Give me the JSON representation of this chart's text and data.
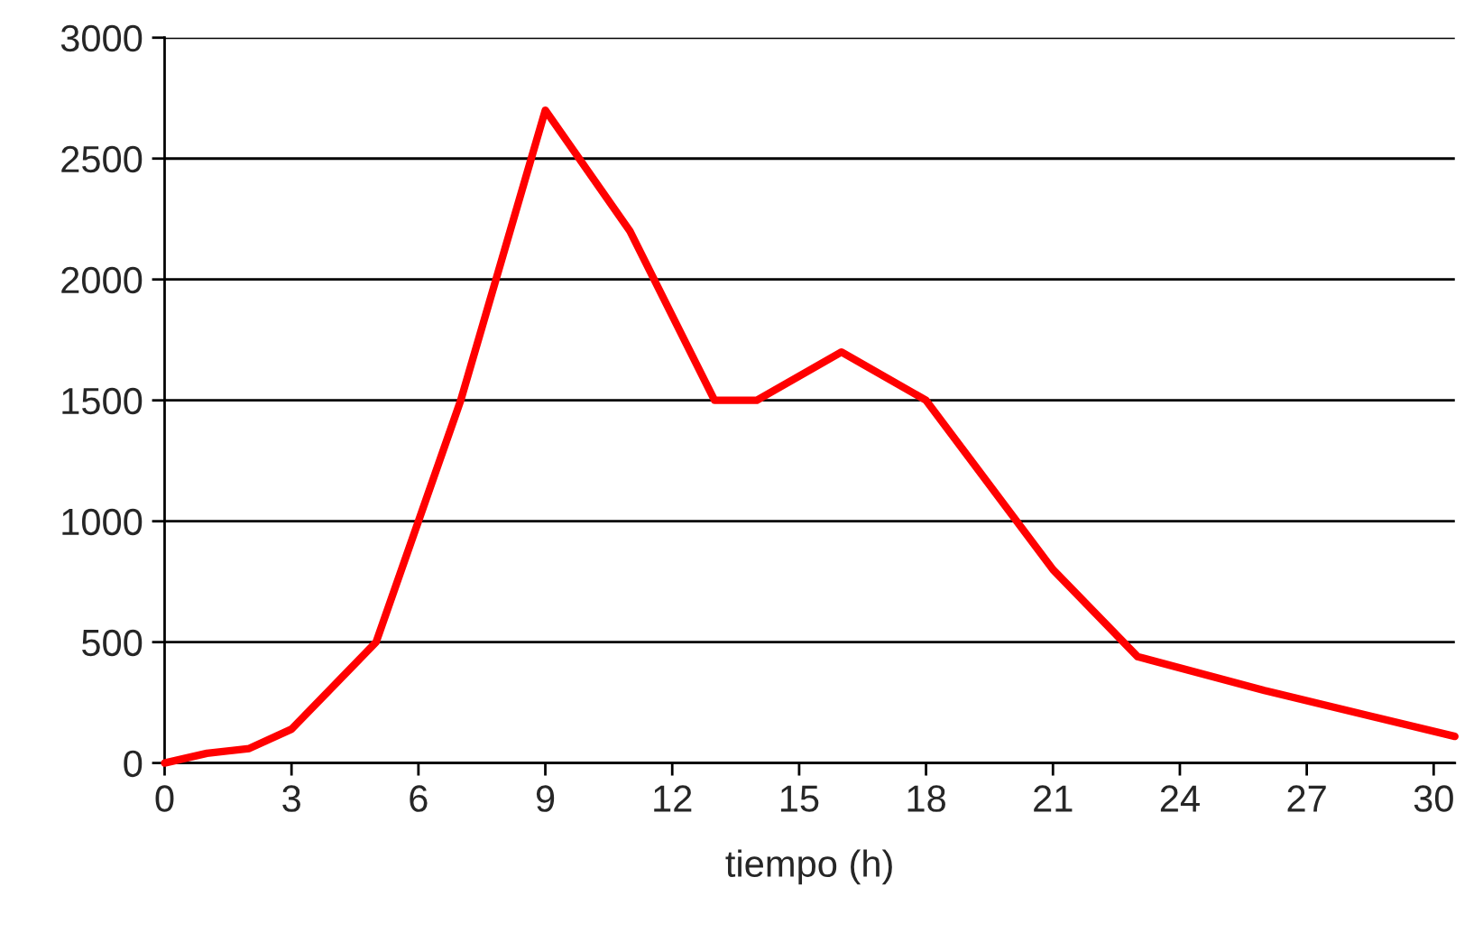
{
  "chart_data": {
    "type": "line",
    "xlabel": "tiempo (h)",
    "x": [
      0,
      1,
      2,
      3,
      5,
      7,
      9,
      11,
      13,
      14,
      16,
      18,
      21,
      23,
      26,
      30.5
    ],
    "series": [
      {
        "color": "#ff0000",
        "values": [
          0,
          40,
          60,
          140,
          500,
          1500,
          2700,
          2200,
          1500,
          1500,
          1700,
          1500,
          800,
          440,
          300,
          110
        ]
      }
    ],
    "xlim": [
      0,
      30.5
    ],
    "xticks": [
      0,
      3,
      6,
      9,
      12,
      15,
      18,
      21,
      24,
      27,
      30
    ],
    "ylim": [
      0,
      3000
    ],
    "yticks": [
      0,
      500,
      1000,
      1500,
      2000,
      2500,
      3000
    ],
    "grid": "y",
    "legend": false,
    "marker": "none",
    "line_style": "solid"
  }
}
